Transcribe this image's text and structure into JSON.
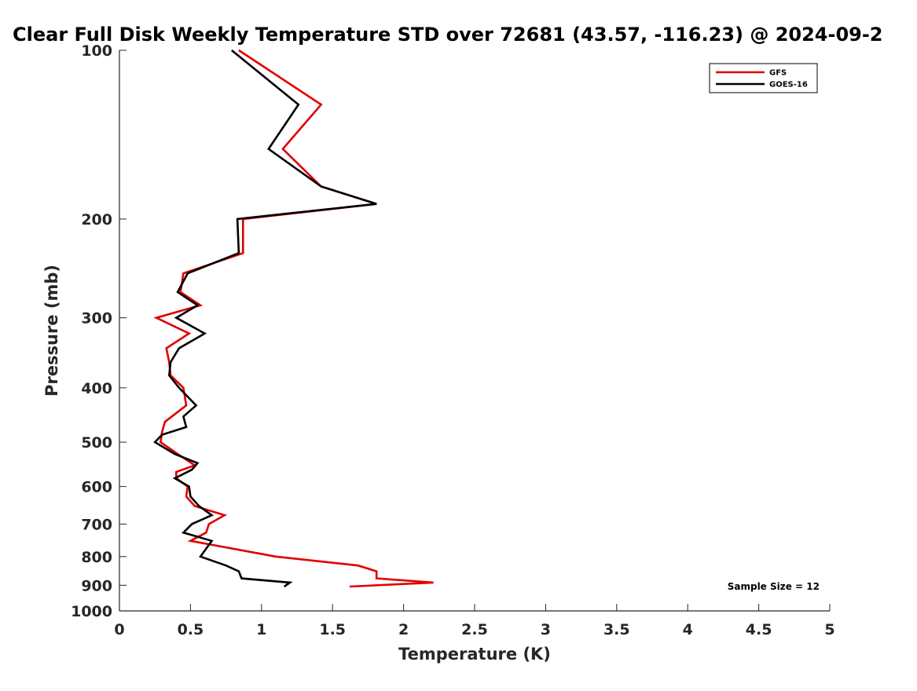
{
  "chart_data": {
    "type": "line",
    "title": "Clear Full Disk Weekly Temperature STD over 72681 (43.57, -116.23) @ 2024-09-2",
    "xlabel": "Temperature (K)",
    "ylabel": "Pressure (mb)",
    "xlim": [
      0,
      5
    ],
    "ylim": [
      100,
      1000
    ],
    "yscale": "log",
    "y_reversed": true,
    "x_ticks": [
      "0",
      "0.5",
      "1",
      "1.5",
      "2",
      "2.5",
      "3",
      "3.5",
      "4",
      "4.5",
      "5"
    ],
    "y_ticks": [
      "100",
      "200",
      "300",
      "400",
      "500",
      "600",
      "700",
      "800",
      "900",
      "1000"
    ],
    "grid": false,
    "legend_position": "top-right",
    "annotation": "Sample Size = 12",
    "series": [
      {
        "name": "GFS",
        "color": "#e00000",
        "points": [
          [
            0.84,
            100
          ],
          [
            1.42,
            125
          ],
          [
            1.15,
            150
          ],
          [
            1.42,
            175
          ],
          [
            1.81,
            188
          ],
          [
            0.87,
            200
          ],
          [
            0.87,
            230
          ],
          [
            0.45,
            250
          ],
          [
            0.43,
            270
          ],
          [
            0.57,
            285
          ],
          [
            0.26,
            300
          ],
          [
            0.49,
            320
          ],
          [
            0.33,
            340
          ],
          [
            0.35,
            360
          ],
          [
            0.36,
            380
          ],
          [
            0.45,
            400
          ],
          [
            0.47,
            430
          ],
          [
            0.32,
            460
          ],
          [
            0.3,
            480
          ],
          [
            0.29,
            500
          ],
          [
            0.41,
            525
          ],
          [
            0.53,
            550
          ],
          [
            0.4,
            565
          ],
          [
            0.4,
            580
          ],
          [
            0.48,
            600
          ],
          [
            0.47,
            625
          ],
          [
            0.53,
            650
          ],
          [
            0.74,
            675
          ],
          [
            0.63,
            700
          ],
          [
            0.61,
            725
          ],
          [
            0.5,
            750
          ],
          [
            1.1,
            800
          ],
          [
            1.68,
            830
          ],
          [
            1.81,
            850
          ],
          [
            1.81,
            875
          ],
          [
            2.21,
            890
          ],
          [
            1.62,
            905
          ]
        ]
      },
      {
        "name": "GOES-16",
        "color": "#000000",
        "points": [
          [
            0.79,
            100
          ],
          [
            1.26,
            125
          ],
          [
            1.05,
            150
          ],
          [
            1.42,
            175
          ],
          [
            1.81,
            188
          ],
          [
            0.83,
            200
          ],
          [
            0.84,
            230
          ],
          [
            0.48,
            250
          ],
          [
            0.41,
            270
          ],
          [
            0.55,
            285
          ],
          [
            0.4,
            300
          ],
          [
            0.6,
            320
          ],
          [
            0.42,
            340
          ],
          [
            0.36,
            360
          ],
          [
            0.35,
            380
          ],
          [
            0.42,
            400
          ],
          [
            0.54,
            430
          ],
          [
            0.45,
            450
          ],
          [
            0.47,
            470
          ],
          [
            0.3,
            485
          ],
          [
            0.25,
            500
          ],
          [
            0.39,
            525
          ],
          [
            0.55,
            545
          ],
          [
            0.51,
            560
          ],
          [
            0.39,
            580
          ],
          [
            0.49,
            600
          ],
          [
            0.5,
            625
          ],
          [
            0.56,
            650
          ],
          [
            0.65,
            675
          ],
          [
            0.51,
            700
          ],
          [
            0.45,
            725
          ],
          [
            0.65,
            750
          ],
          [
            0.57,
            800
          ],
          [
            0.75,
            830
          ],
          [
            0.84,
            850
          ],
          [
            0.86,
            875
          ],
          [
            1.2,
            890
          ],
          [
            1.16,
            905
          ]
        ]
      }
    ]
  }
}
